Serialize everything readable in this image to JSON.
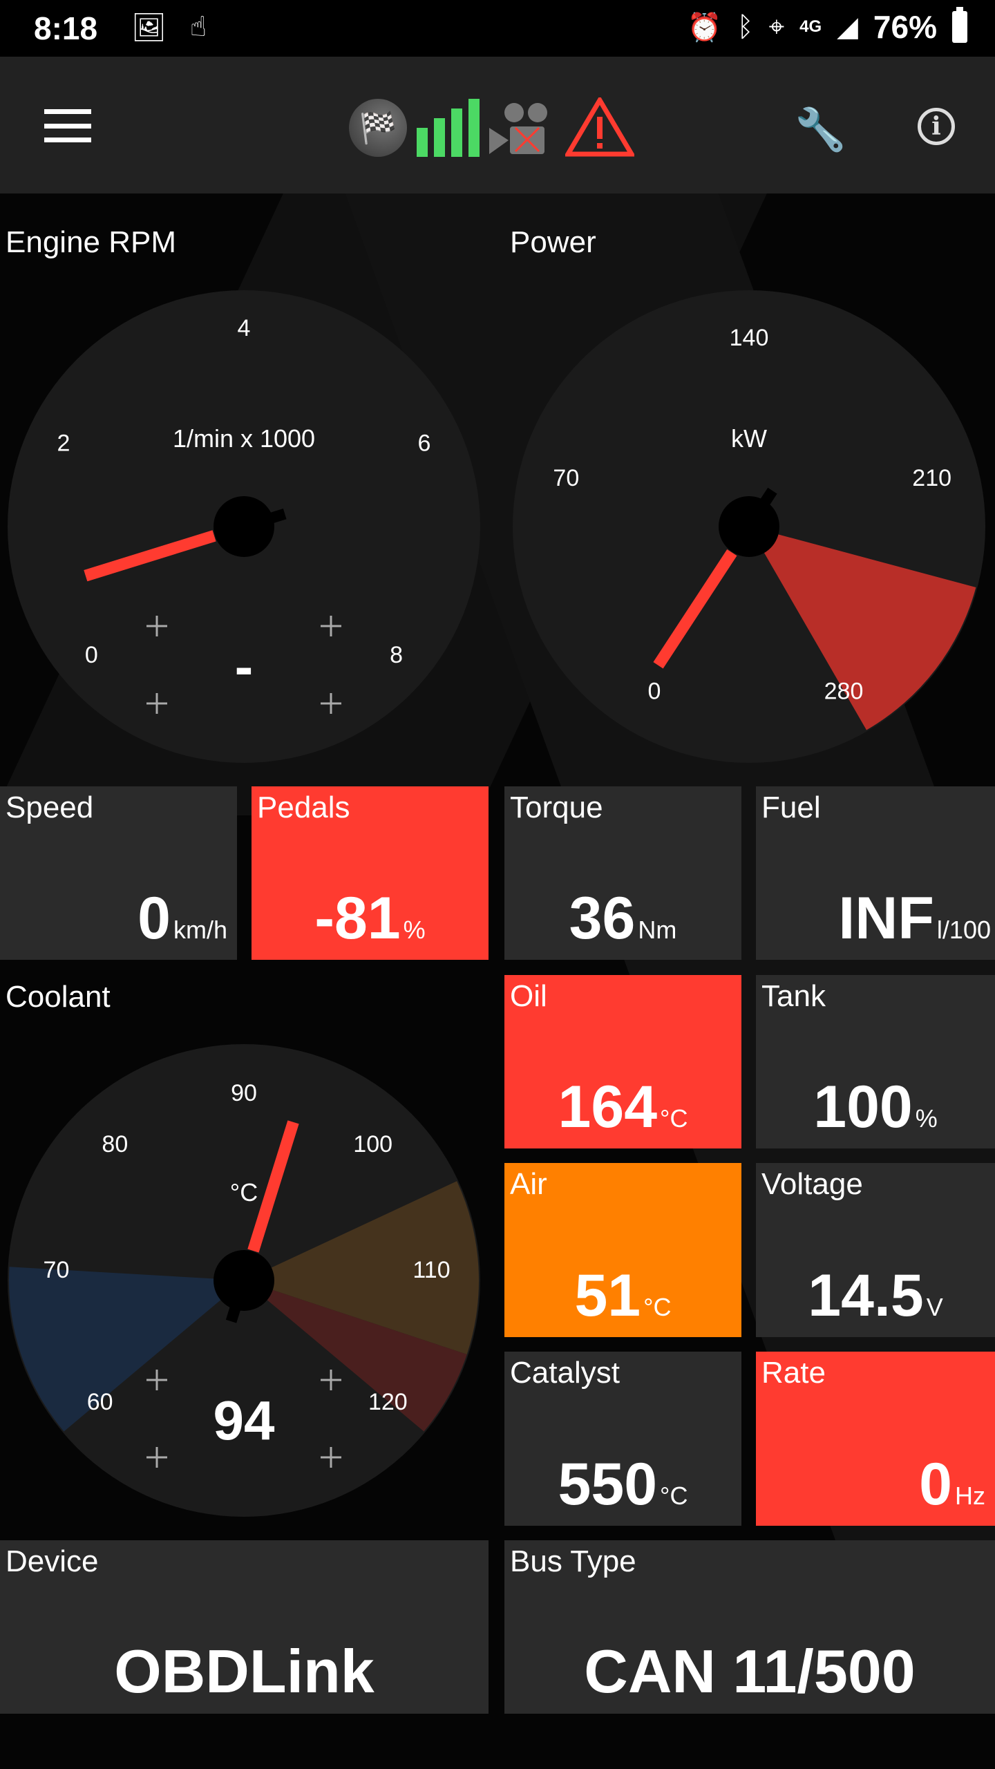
{
  "status_bar": {
    "time": "8:18",
    "battery": "76%",
    "network": "4G",
    "icons": [
      "image-icon",
      "touch-icon",
      "alarm-icon",
      "bluetooth-icon",
      "location-icon",
      "4g-icon",
      "signal-icon",
      "battery-icon"
    ]
  },
  "toolbar": {
    "icons": [
      "menu-icon",
      "checkered-flag-icon",
      "signal-bars-icon",
      "camera-off-icon",
      "warning-icon",
      "wrench-icon",
      "info-icon"
    ],
    "warning_color": "#ff3b30",
    "signal_color": "#4cd964"
  },
  "gauges": {
    "rpm": {
      "title": "Engine RPM",
      "unit": "1/min x 1000",
      "ticks": [
        "0",
        "2",
        "4",
        "6",
        "8"
      ],
      "min": 0,
      "max": 8,
      "needle": 0.7,
      "value": "-",
      "zones": []
    },
    "power": {
      "title": "Power",
      "unit": "kW",
      "ticks": [
        "0",
        "70",
        "140",
        "210",
        "280"
      ],
      "min": 0,
      "max": 280,
      "needle": 3,
      "zones": [
        {
          "from": 238,
          "to": 280,
          "color": "#b82e28"
        }
      ]
    },
    "coolant": {
      "title": "Coolant",
      "unit": "°C",
      "ticks": [
        "60",
        "70",
        "80",
        "90",
        "100",
        "110",
        "120"
      ],
      "min": 60,
      "max": 120,
      "needle": 94,
      "value": "94",
      "zones": [
        {
          "from": 60,
          "to": 70,
          "color": "#1a2a40"
        },
        {
          "from": 105,
          "to": 115,
          "color": "#45331d"
        },
        {
          "from": 115,
          "to": 120,
          "color": "#4a1f1e"
        }
      ]
    }
  },
  "tiles": {
    "speed": {
      "title": "Speed",
      "value": "0",
      "unit": "km/h"
    },
    "pedals": {
      "title": "Pedals",
      "value": "-81",
      "unit": "%"
    },
    "torque": {
      "title": "Torque",
      "value": "36",
      "unit": "Nm"
    },
    "fuel": {
      "title": "Fuel",
      "value": "INF",
      "unit": "l/100"
    },
    "oil": {
      "title": "Oil",
      "value": "164",
      "unit": "°C"
    },
    "tank": {
      "title": "Tank",
      "value": "100",
      "unit": "%"
    },
    "air": {
      "title": "Air",
      "value": "51",
      "unit": "°C"
    },
    "voltage": {
      "title": "Voltage",
      "value": "14.5",
      "unit": "V"
    },
    "catalyst": {
      "title": "Catalyst",
      "value": "550",
      "unit": "°C"
    },
    "rate": {
      "title": "Rate",
      "value": "0",
      "unit": "Hz"
    },
    "device": {
      "title": "Device",
      "value": "OBDLink"
    },
    "bus_type": {
      "title": "Bus Type",
      "value": "CAN 11/500"
    }
  },
  "colors": {
    "alert": "#ff3b30",
    "warning": "#ff8000",
    "tile": "#2b2b2b",
    "needle": "#ff3b30"
  }
}
